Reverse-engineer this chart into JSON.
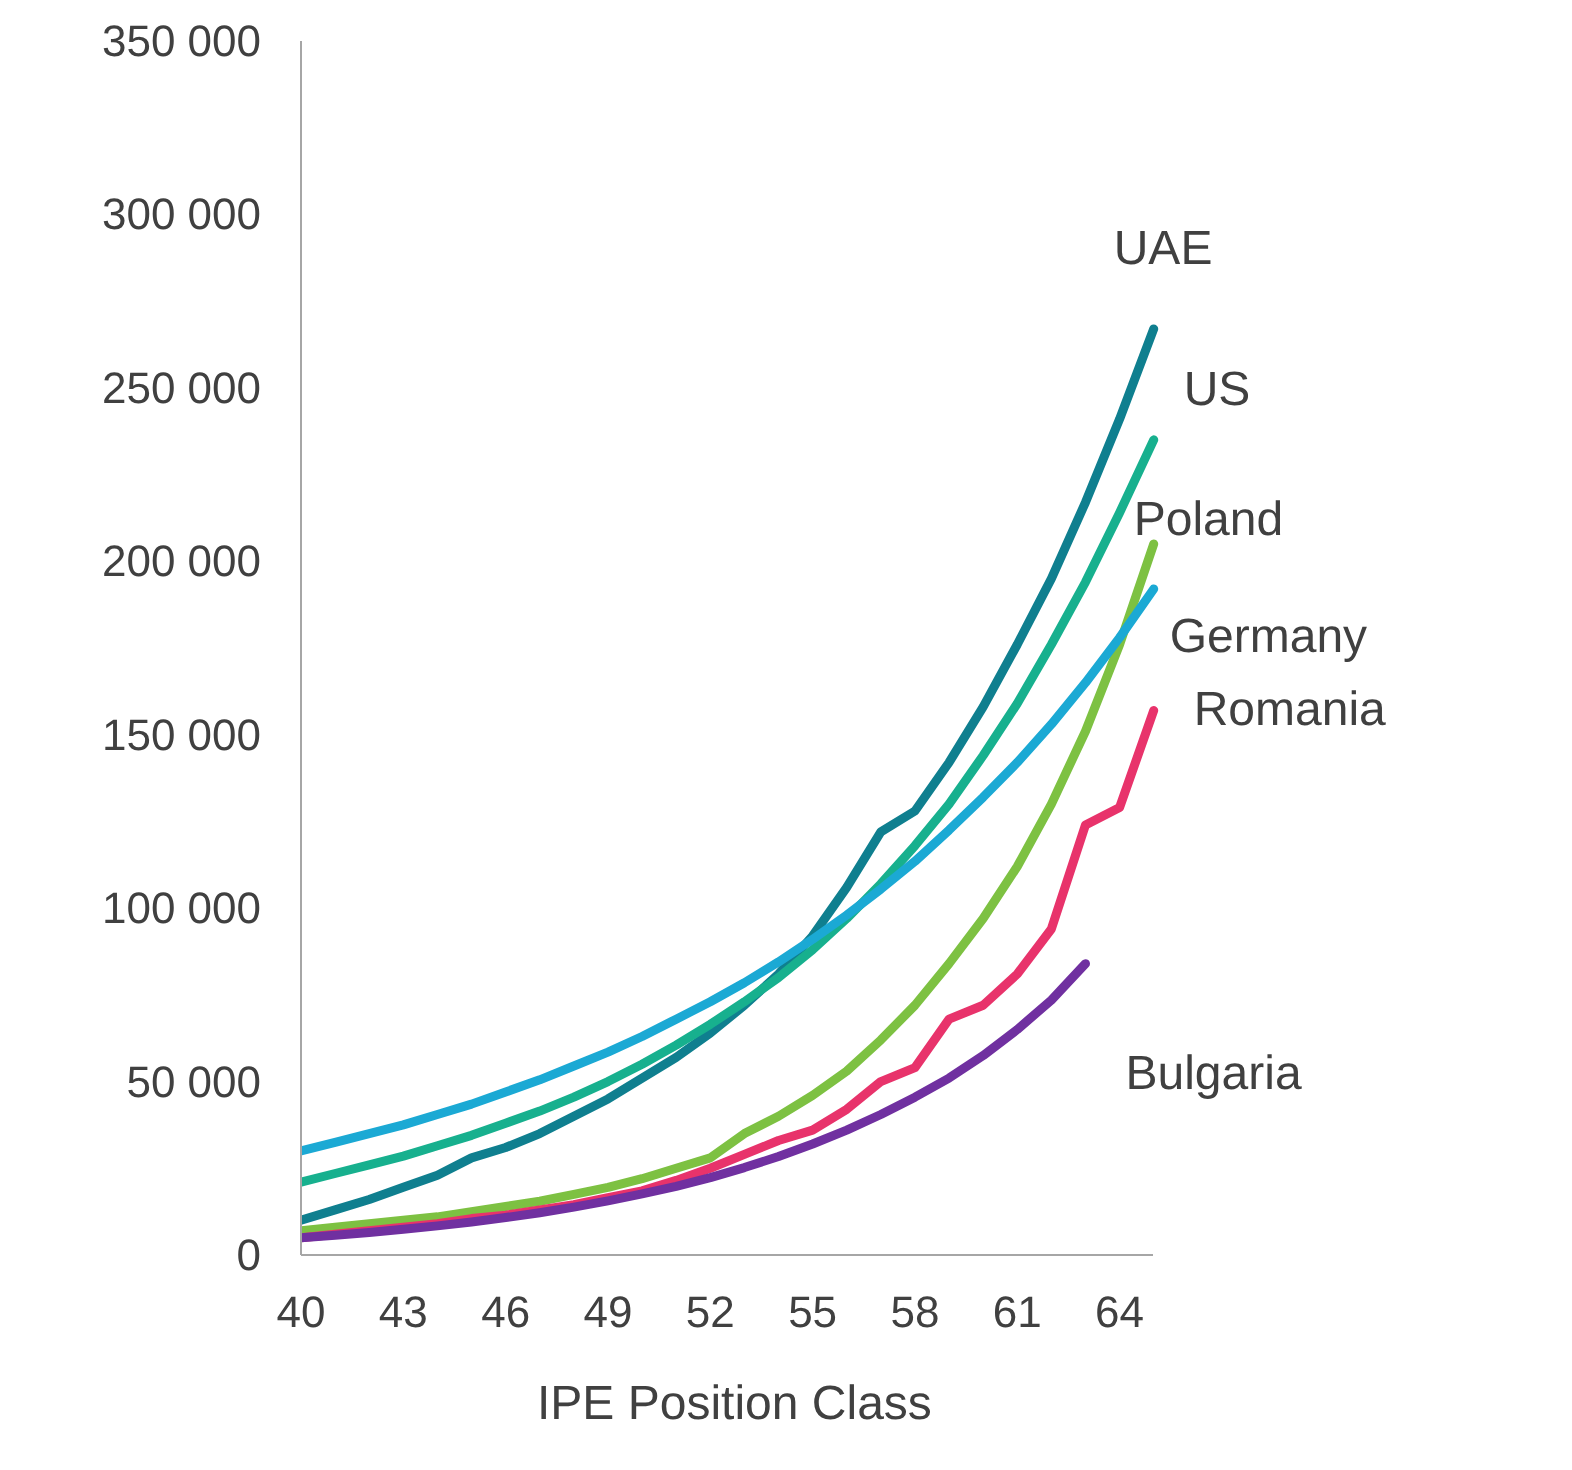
{
  "chart_data": {
    "type": "line",
    "xlabel": "IPE Position Class",
    "x": [
      40,
      41,
      42,
      43,
      44,
      45,
      46,
      47,
      48,
      49,
      50,
      51,
      52,
      53,
      54,
      55,
      56,
      57,
      58,
      59,
      60,
      61,
      62,
      63,
      64,
      65
    ],
    "xlim": [
      40,
      65
    ],
    "xticks": [
      40,
      43,
      46,
      49,
      52,
      55,
      58,
      61,
      64
    ],
    "ylim": [
      0,
      350000
    ],
    "yticks": [
      {
        "value": 0,
        "label": "0"
      },
      {
        "value": 50000,
        "label": "50 000"
      },
      {
        "value": 100000,
        "label": "100 000"
      },
      {
        "value": 150000,
        "label": "150 000"
      },
      {
        "value": 200000,
        "label": "200 000"
      },
      {
        "value": 250000,
        "label": "250 000"
      },
      {
        "value": 300000,
        "label": "300 000"
      },
      {
        "value": 350000,
        "label": "350 000"
      }
    ],
    "grid": false,
    "legend": false,
    "marker": "none",
    "line_style": "solid",
    "series": [
      {
        "name": "UAE",
        "color": "#0f7f8f",
        "values": [
          10000,
          13000,
          16000,
          19500,
          23000,
          28000,
          31000,
          35000,
          40000,
          45000,
          51000,
          57000,
          64000,
          72000,
          81000,
          92000,
          106000,
          122000,
          128000,
          142000,
          158000,
          176000,
          195000,
          217000,
          241000,
          267000
        ]
      },
      {
        "name": "US",
        "color": "#17b08e",
        "values": [
          21000,
          23500,
          26000,
          28500,
          31500,
          34500,
          38000,
          41500,
          45500,
          50000,
          55000,
          60500,
          66500,
          73000,
          80000,
          88000,
          97000,
          107000,
          118000,
          130000,
          144000,
          159000,
          176000,
          194000,
          214000,
          235000
        ]
      },
      {
        "name": "Poland",
        "color": "#7dc142",
        "values": [
          7000,
          8000,
          9000,
          10000,
          11000,
          12500,
          14000,
          15500,
          17500,
          19500,
          22000,
          25000,
          28000,
          35000,
          40000,
          46000,
          53000,
          62000,
          72000,
          84000,
          97000,
          112000,
          130000,
          151000,
          176000,
          205000
        ]
      },
      {
        "name": "Germany",
        "color": "#1ba9d4",
        "values": [
          30000,
          32500,
          35000,
          37500,
          40500,
          43500,
          47000,
          50500,
          54500,
          58500,
          63000,
          68000,
          73000,
          78500,
          84500,
          91000,
          98000,
          105500,
          113500,
          122500,
          132000,
          142000,
          153000,
          165000,
          178000,
          192000
        ]
      },
      {
        "name": "Romania",
        "color": "#e8336b",
        "values": [
          5000,
          6000,
          7000,
          8000,
          9000,
          10500,
          11500,
          13000,
          14500,
          16500,
          18500,
          21500,
          25000,
          29000,
          33000,
          36000,
          42000,
          50000,
          54000,
          68000,
          72000,
          81000,
          94000,
          124000,
          129000,
          157000
        ]
      },
      {
        "name": "Bulgaria",
        "color": "#7030a0",
        "values": [
          5000,
          5700,
          6500,
          7400,
          8400,
          9500,
          10800,
          12200,
          13800,
          15600,
          17600,
          19800,
          22300,
          25200,
          28400,
          32000,
          36000,
          40500,
          45500,
          51000,
          57500,
          65000,
          73500,
          84000,
          null,
          null
        ]
      }
    ]
  }
}
